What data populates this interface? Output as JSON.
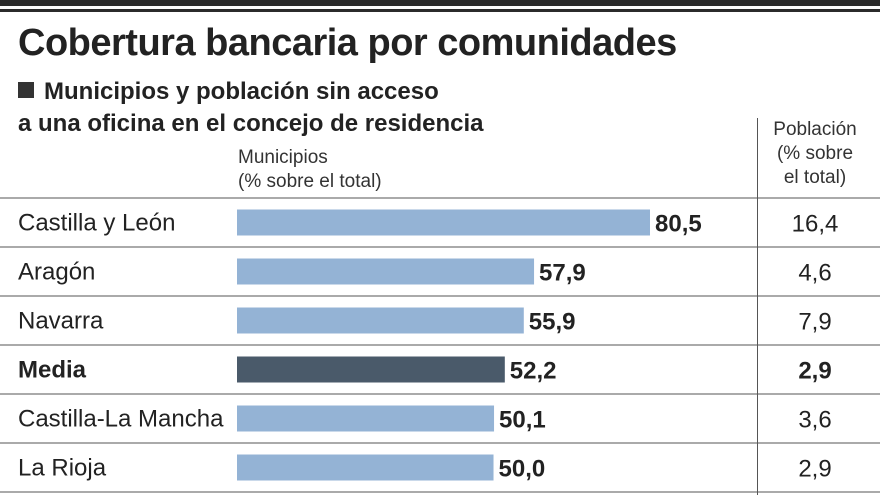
{
  "header": {
    "title": "Cobertura bancaria por comunidades",
    "subtitle_line1": "Municipios y población sin acceso",
    "subtitle_line2": "a una oficina en el concejo de residencia",
    "col_municipios_1": "Municipios",
    "col_municipios_2": "(% sobre el total)",
    "col_poblacion_1": "Población",
    "col_poblacion_2": "(% sobre",
    "col_poblacion_3": "el total)"
  },
  "colors": {
    "bar": "#94b3d5",
    "highlight_bar": "#4a5a6a",
    "rule": "#555555"
  },
  "chart_data": {
    "type": "bar",
    "orientation": "horizontal",
    "categories": [
      "Castilla y León",
      "Aragón",
      "Navarra",
      "Media",
      "Castilla-La Mancha",
      "La Rioja"
    ],
    "series": [
      {
        "name": "Municipios (% sobre el total)",
        "values": [
          80.5,
          57.9,
          55.9,
          52.2,
          50.1,
          50.0
        ],
        "labels": [
          "80,5",
          "57,9",
          "55,9",
          "52,2",
          "50,1",
          "50,0"
        ]
      },
      {
        "name": "Población (% sobre el total)",
        "values": [
          16.4,
          4.6,
          7.9,
          2.9,
          3.6,
          2.9
        ],
        "labels": [
          "16,4",
          "4,6",
          "7,9",
          "2,9",
          "3,6",
          "2,9"
        ]
      }
    ],
    "highlight": "Media",
    "xlim": [
      0,
      100
    ]
  }
}
